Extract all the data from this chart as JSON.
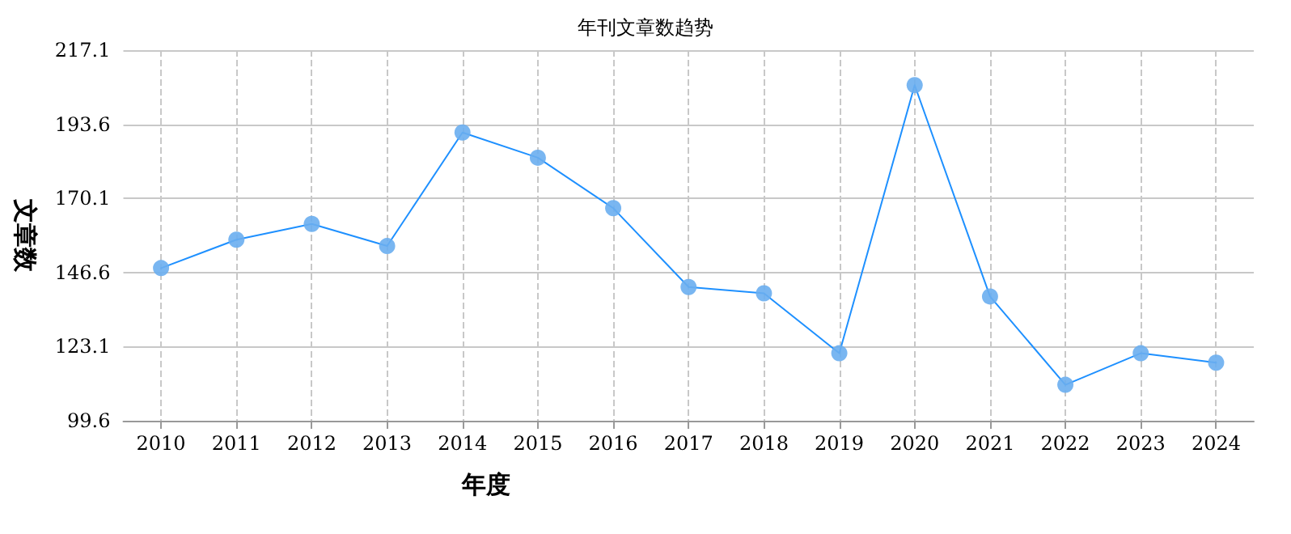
{
  "chart_data": {
    "type": "line",
    "title": "年刊文章数趋势",
    "xlabel": "年度",
    "ylabel": "文章数",
    "categories": [
      "2010",
      "2011",
      "2012",
      "2013",
      "2014",
      "2015",
      "2016",
      "2017",
      "2018",
      "2019",
      "2020",
      "2021",
      "2022",
      "2023",
      "2024"
    ],
    "series": [
      {
        "color": "#1e90ff",
        "values": [
          148,
          157,
          162,
          155,
          191,
          183,
          167,
          142,
          140,
          121,
          206,
          139,
          111,
          121,
          118
        ]
      }
    ],
    "ylim": [
      99.6,
      217.1
    ],
    "yticks": [
      99.6,
      123.1,
      146.6,
      170.1,
      193.6,
      217.1
    ],
    "grid": true,
    "marker": "circle"
  }
}
